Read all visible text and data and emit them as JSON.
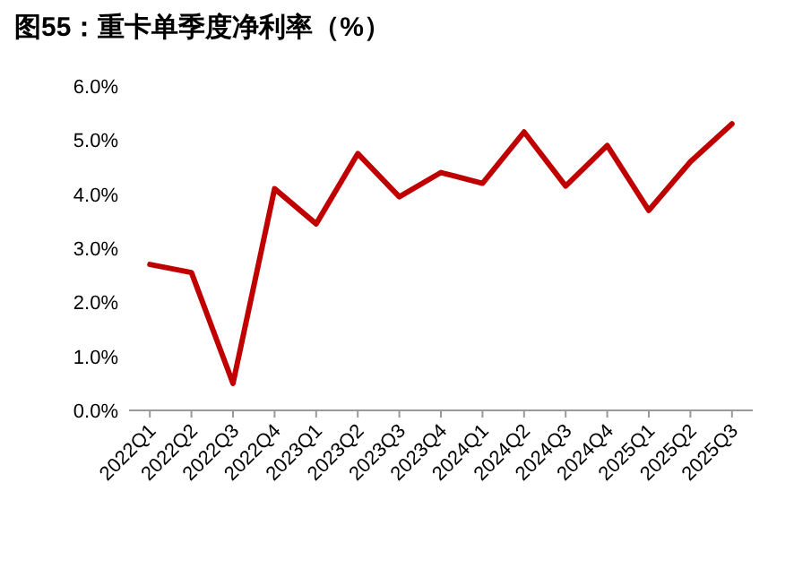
{
  "chart_data": {
    "type": "line",
    "title": "图55：重卡单季度净利率（%）",
    "categories": [
      "2022Q1",
      "2022Q2",
      "2022Q3",
      "2022Q4",
      "2023Q1",
      "2023Q2",
      "2023Q3",
      "2023Q4",
      "2024Q1",
      "2024Q2",
      "2024Q3",
      "2024Q4",
      "2025Q1",
      "2025Q2",
      "2025Q3"
    ],
    "series": [
      {
        "color": "#c00000",
        "values": [
          2.7,
          2.55,
          0.5,
          4.1,
          3.45,
          4.75,
          3.95,
          4.4,
          4.2,
          5.15,
          4.15,
          4.9,
          3.7,
          4.6,
          5.3
        ]
      }
    ],
    "ylim": [
      0,
      6
    ],
    "yticks": [
      {
        "value": 0,
        "label": "0.0%"
      },
      {
        "value": 1,
        "label": "1.0%"
      },
      {
        "value": 2,
        "label": "2.0%"
      },
      {
        "value": 3,
        "label": "3.0%"
      },
      {
        "value": 4,
        "label": "4.0%"
      },
      {
        "value": 5,
        "label": "5.0%"
      },
      {
        "value": 6,
        "label": "6.0%"
      }
    ],
    "grid": false,
    "marker": "none",
    "line_style": "solid"
  }
}
